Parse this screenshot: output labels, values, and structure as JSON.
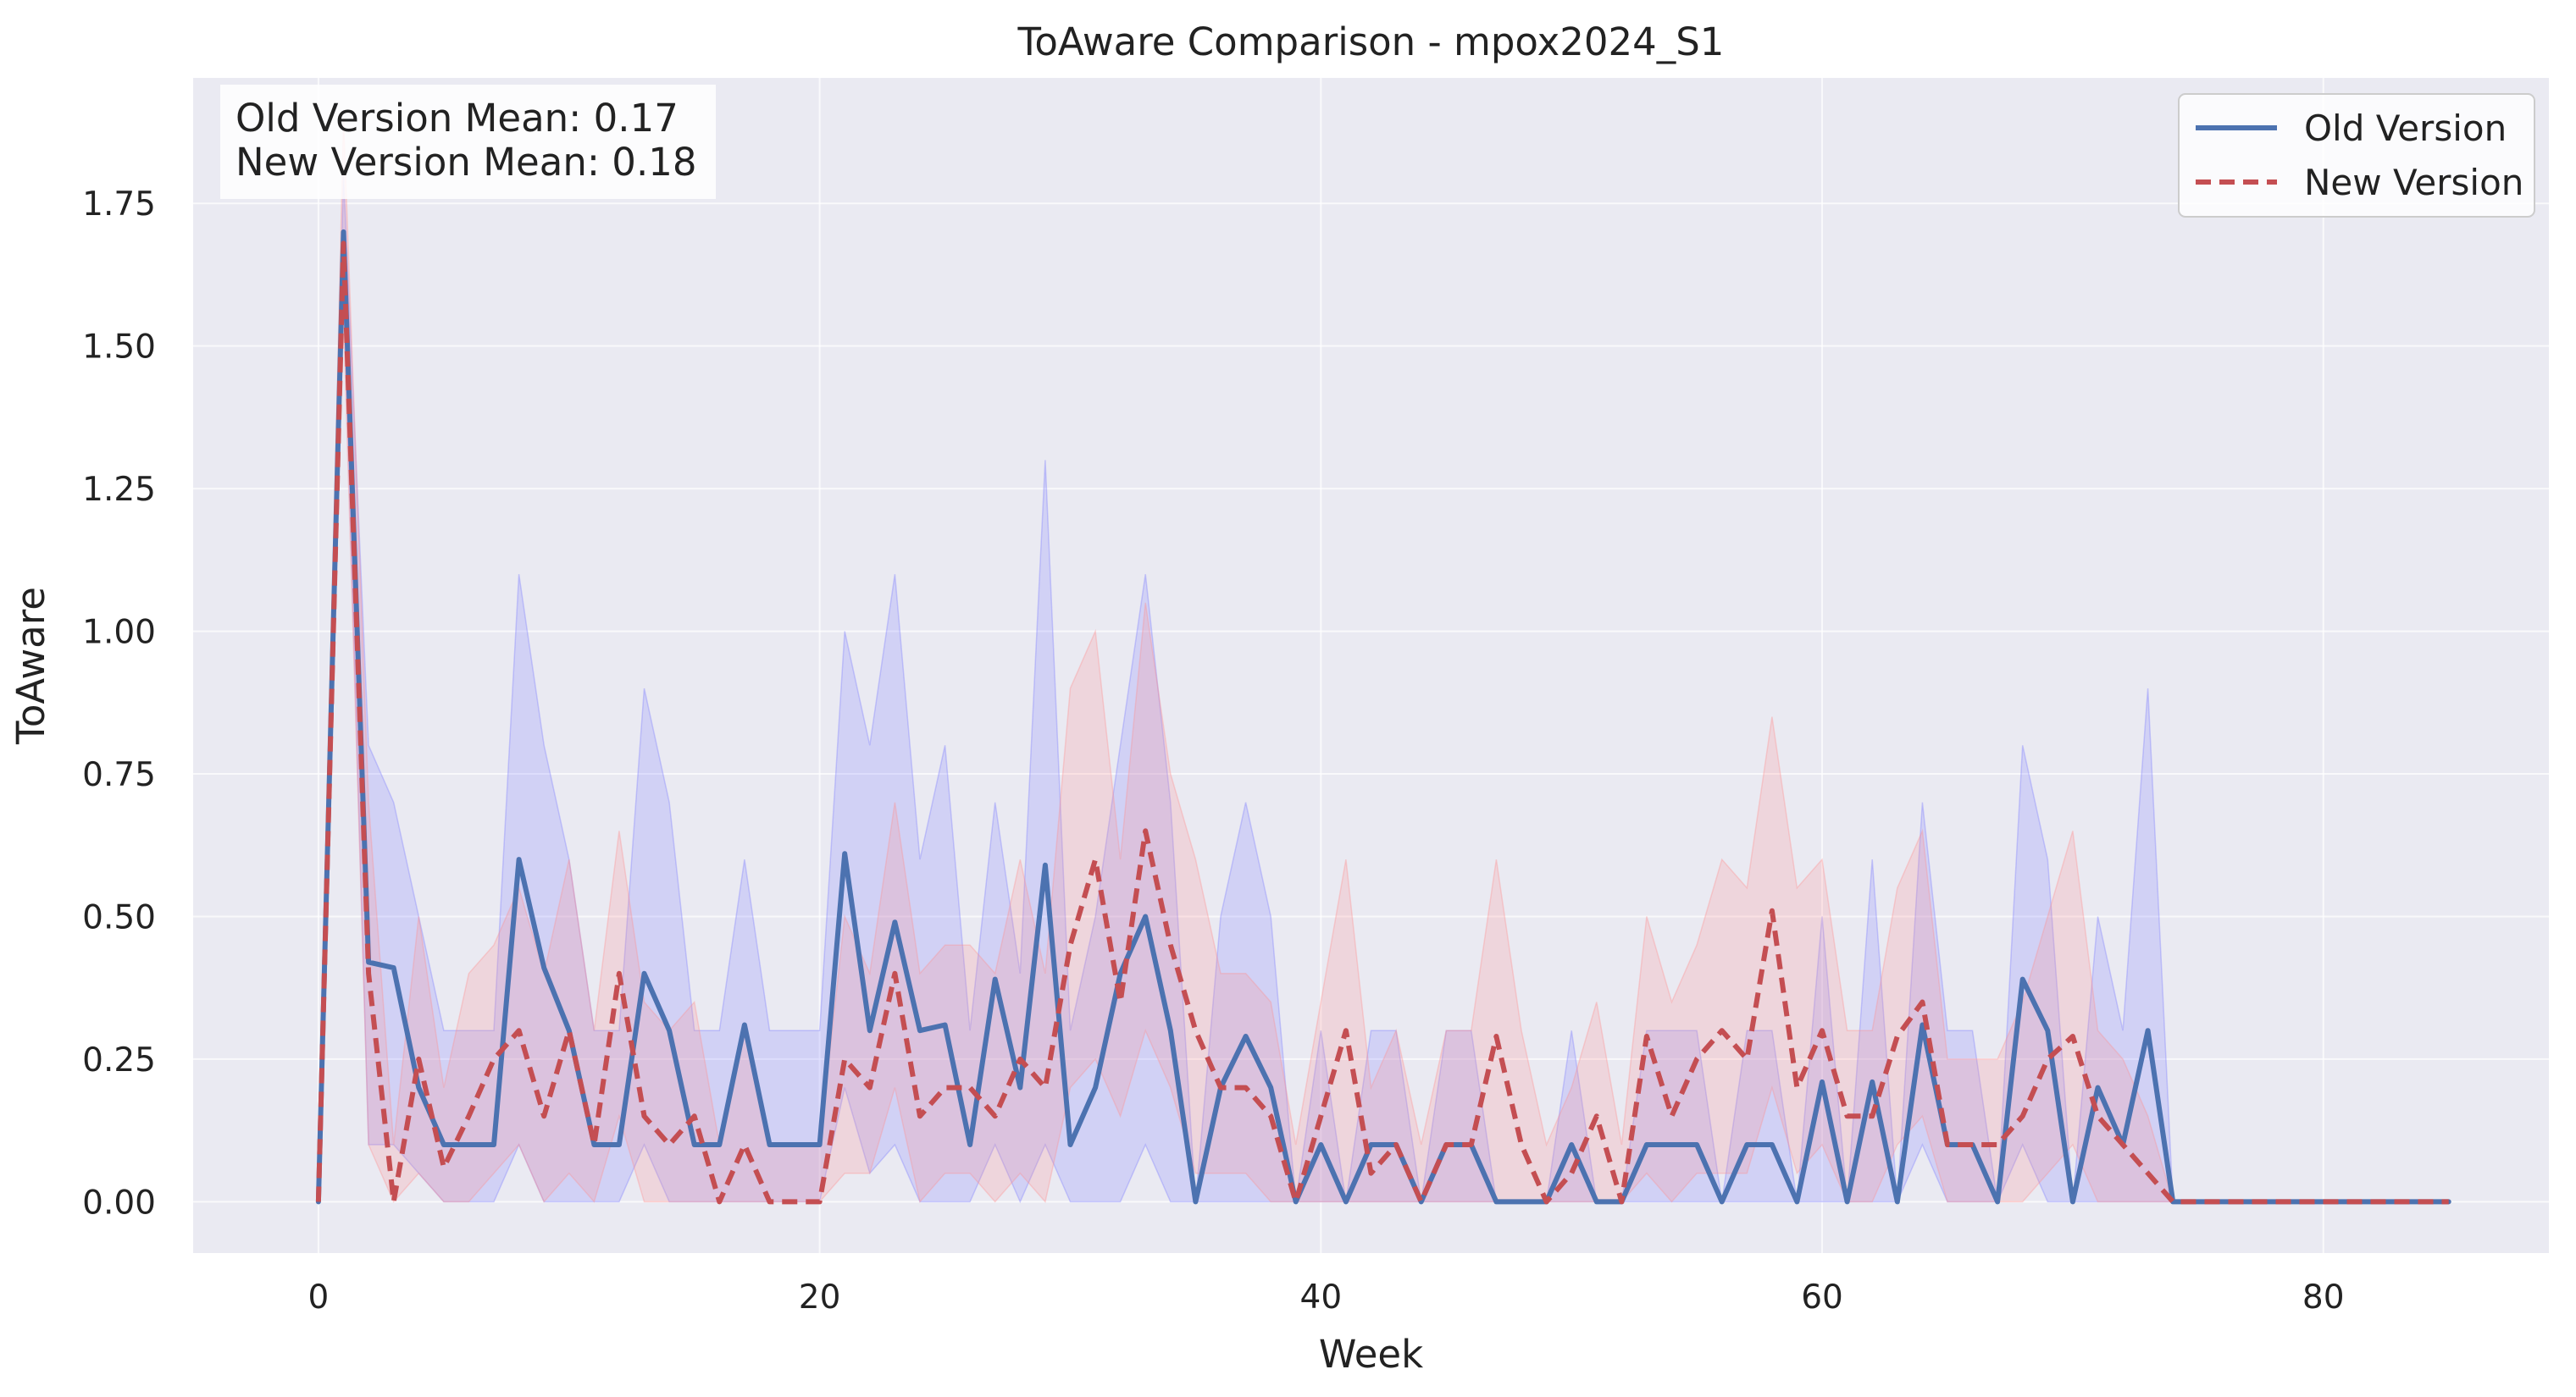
{
  "chart_data": {
    "type": "line",
    "title": "ToAware Comparison - mpox2024_S1",
    "xlabel": "Week",
    "ylabel": "ToAware",
    "xlim": [
      -5,
      89
    ],
    "ylim": [
      -0.09,
      1.97
    ],
    "xticks": [
      0,
      20,
      40,
      60,
      80
    ],
    "yticks": [
      0.0,
      0.25,
      0.5,
      0.75,
      1.0,
      1.25,
      1.5,
      1.75
    ],
    "xtick_labels": [
      "0",
      "20",
      "40",
      "60",
      "80"
    ],
    "ytick_labels": [
      "0.00",
      "0.25",
      "0.50",
      "0.75",
      "1.00",
      "1.25",
      "1.50",
      "1.75"
    ],
    "grid": true,
    "legend_position": "top-right",
    "stats_box": [
      "Old Version Mean: 0.17",
      "New Version Mean: 0.18"
    ],
    "series": [
      {
        "name": "Old Version",
        "color": "#4c72b0",
        "line_style": "solid",
        "band_color": "#7b7bff",
        "x": [
          0,
          1,
          2,
          3,
          4,
          5,
          6,
          7,
          8,
          9,
          10,
          11,
          12,
          13,
          14,
          15,
          16,
          17,
          18,
          19,
          20,
          21,
          22,
          23,
          24,
          25,
          26,
          27,
          28,
          29,
          30,
          31,
          32,
          33,
          34,
          35,
          36,
          37,
          38,
          39,
          40,
          41,
          42,
          43,
          44,
          45,
          46,
          47,
          48,
          49,
          50,
          51,
          52,
          53,
          54,
          55,
          56,
          57,
          58,
          59,
          60,
          61,
          62,
          63,
          64,
          65,
          66,
          67,
          68,
          69,
          70,
          71,
          72,
          73,
          74,
          75,
          76,
          77,
          78,
          79,
          80,
          81,
          82,
          83,
          84,
          85
        ],
        "y": [
          0,
          1.7,
          0.42,
          0.41,
          0.2,
          0.1,
          0.1,
          0.1,
          0.6,
          0.41,
          0.3,
          0.1,
          0.1,
          0.4,
          0.3,
          0.1,
          0.1,
          0.31,
          0.1,
          0.1,
          0.1,
          0.61,
          0.3,
          0.49,
          0.3,
          0.31,
          0.1,
          0.39,
          0.2,
          0.59,
          0.1,
          0.2,
          0.4,
          0.5,
          0.3,
          0,
          0.2,
          0.29,
          0.2,
          0,
          0.1,
          0,
          0.1,
          0.1,
          0,
          0.1,
          0.1,
          0,
          0,
          0,
          0.1,
          0,
          0,
          0.1,
          0.1,
          0.1,
          0,
          0.1,
          0.1,
          0,
          0.21,
          0,
          0.21,
          0,
          0.31,
          0.1,
          0.1,
          0,
          0.39,
          0.3,
          0,
          0.2,
          0.1,
          0.3,
          0,
          0,
          0,
          0,
          0,
          0,
          0,
          0,
          0,
          0,
          0,
          0
        ],
        "band_low": [
          0,
          1.6,
          0.1,
          0.1,
          0.05,
          0,
          0,
          0,
          0.1,
          0,
          0,
          0,
          0,
          0.1,
          0,
          0,
          0,
          0,
          0,
          0,
          0,
          0.2,
          0.05,
          0.1,
          0,
          0,
          0,
          0.1,
          0,
          0.1,
          0,
          0,
          0,
          0.1,
          0,
          0,
          0,
          0,
          0,
          0,
          0,
          0,
          0,
          0,
          0,
          0,
          0,
          0,
          0,
          0,
          0,
          0,
          0,
          0,
          0,
          0,
          0,
          0,
          0,
          0,
          0,
          0,
          0,
          0,
          0.1,
          0,
          0,
          0,
          0.1,
          0,
          0,
          0,
          0,
          0,
          0,
          0,
          0,
          0,
          0,
          0,
          0,
          0,
          0,
          0,
          0,
          0
        ],
        "band_high": [
          0,
          1.8,
          0.8,
          0.7,
          0.5,
          0.3,
          0.3,
          0.3,
          1.1,
          0.8,
          0.6,
          0.3,
          0.3,
          0.9,
          0.7,
          0.3,
          0.3,
          0.6,
          0.3,
          0.3,
          0.3,
          1.0,
          0.8,
          1.1,
          0.6,
          0.8,
          0.3,
          0.7,
          0.4,
          1.3,
          0.3,
          0.5,
          0.8,
          1.1,
          0.7,
          0,
          0.5,
          0.7,
          0.5,
          0,
          0.3,
          0,
          0.3,
          0.3,
          0,
          0.3,
          0.3,
          0,
          0,
          0,
          0.3,
          0,
          0,
          0.3,
          0.3,
          0.3,
          0,
          0.3,
          0.3,
          0,
          0.5,
          0,
          0.6,
          0,
          0.7,
          0.3,
          0.3,
          0,
          0.8,
          0.6,
          0,
          0.5,
          0.3,
          0.9,
          0,
          0,
          0,
          0,
          0,
          0,
          0,
          0,
          0,
          0,
          0,
          0
        ]
      },
      {
        "name": "New Version",
        "color": "#c44e52",
        "line_style": "dashed",
        "band_color": "#ff8f8f",
        "x": [
          0,
          1,
          2,
          3,
          4,
          5,
          6,
          7,
          8,
          9,
          10,
          11,
          12,
          13,
          14,
          15,
          16,
          17,
          18,
          19,
          20,
          21,
          22,
          23,
          24,
          25,
          26,
          27,
          28,
          29,
          30,
          31,
          32,
          33,
          34,
          35,
          36,
          37,
          38,
          39,
          40,
          41,
          42,
          43,
          44,
          45,
          46,
          47,
          48,
          49,
          50,
          51,
          52,
          53,
          54,
          55,
          56,
          57,
          58,
          59,
          60,
          61,
          62,
          63,
          64,
          65,
          66,
          67,
          68,
          69,
          70,
          71,
          72,
          73,
          74,
          75,
          76,
          77,
          78,
          79,
          80,
          81,
          82,
          83,
          84,
          85
        ],
        "y": [
          0,
          1.68,
          0.4,
          0,
          0.25,
          0.06,
          0.15,
          0.25,
          0.3,
          0.15,
          0.3,
          0.1,
          0.4,
          0.15,
          0.1,
          0.15,
          0,
          0.1,
          0,
          0,
          0,
          0.25,
          0.2,
          0.4,
          0.15,
          0.2,
          0.2,
          0.15,
          0.25,
          0.2,
          0.45,
          0.6,
          0.35,
          0.65,
          0.45,
          0.3,
          0.2,
          0.2,
          0.15,
          0,
          0.15,
          0.3,
          0.05,
          0.1,
          0,
          0.1,
          0.1,
          0.29,
          0.1,
          0,
          0.05,
          0.15,
          0,
          0.29,
          0.15,
          0.25,
          0.3,
          0.25,
          0.51,
          0.2,
          0.3,
          0.15,
          0.15,
          0.29,
          0.35,
          0.1,
          0.1,
          0.1,
          0.15,
          0.25,
          0.29,
          0.15,
          0.1,
          0.05,
          0,
          0,
          0,
          0,
          0,
          0,
          0,
          0,
          0,
          0,
          0,
          0
        ],
        "band_low": [
          0,
          1.55,
          0.1,
          0,
          0.05,
          0,
          0,
          0.05,
          0.1,
          0,
          0.05,
          0,
          0.15,
          0,
          0,
          0,
          0,
          0,
          0,
          0,
          0,
          0.05,
          0.05,
          0.2,
          0,
          0.05,
          0.05,
          0,
          0.05,
          0,
          0.2,
          0.25,
          0.15,
          0.3,
          0.2,
          0.05,
          0.05,
          0.05,
          0,
          0,
          0,
          0,
          0,
          0,
          0,
          0,
          0,
          0,
          0,
          0,
          0,
          0,
          0,
          0.05,
          0,
          0.05,
          0.05,
          0.05,
          0.2,
          0.05,
          0.1,
          0,
          0,
          0.1,
          0.15,
          0,
          0,
          0,
          0,
          0.05,
          0.1,
          0,
          0,
          0,
          0,
          0,
          0,
          0,
          0,
          0,
          0,
          0,
          0,
          0,
          0,
          0
        ],
        "band_high": [
          0,
          1.9,
          0.7,
          0.1,
          0.5,
          0.2,
          0.4,
          0.45,
          0.55,
          0.4,
          0.6,
          0.3,
          0.65,
          0.35,
          0.3,
          0.35,
          0.1,
          0.3,
          0.1,
          0.1,
          0.1,
          0.5,
          0.4,
          0.7,
          0.4,
          0.45,
          0.45,
          0.4,
          0.6,
          0.4,
          0.9,
          1.0,
          0.6,
          1.05,
          0.75,
          0.6,
          0.4,
          0.4,
          0.35,
          0.1,
          0.35,
          0.6,
          0.2,
          0.3,
          0.1,
          0.3,
          0.3,
          0.6,
          0.3,
          0.1,
          0.2,
          0.35,
          0.1,
          0.5,
          0.35,
          0.45,
          0.6,
          0.55,
          0.85,
          0.55,
          0.6,
          0.3,
          0.3,
          0.55,
          0.65,
          0.25,
          0.25,
          0.25,
          0.35,
          0.5,
          0.65,
          0.3,
          0.25,
          0.15,
          0,
          0,
          0,
          0,
          0,
          0,
          0,
          0,
          0,
          0,
          0,
          0
        ]
      }
    ]
  }
}
